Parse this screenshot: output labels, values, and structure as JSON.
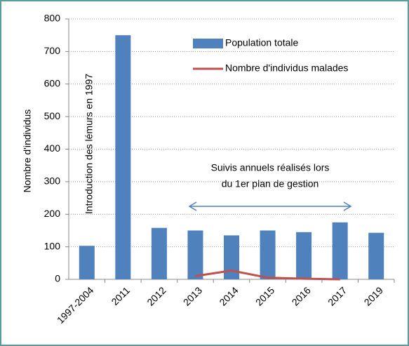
{
  "chart_data": {
    "type": "bar_line",
    "y_axis_label": "Nombre d'individus",
    "categories": [
      "1997-2004",
      "2011",
      "2012",
      "2013",
      "2014",
      "2015",
      "2016",
      "2017",
      "2019"
    ],
    "series": [
      {
        "name": "Population totale",
        "color": "#4f81bd",
        "type": "bar",
        "values": [
          103,
          750,
          158,
          150,
          135,
          150,
          145,
          175,
          143
        ]
      },
      {
        "name": "Nombre d'individus malades",
        "color": "#c0504d",
        "type": "line",
        "values": [
          null,
          null,
          null,
          10,
          27,
          5,
          2,
          0,
          null
        ]
      }
    ],
    "annotations": [
      "Introduction des lémurs en 1997",
      "Suivis annuels réalisés lors",
      "du 1er plan de gestion"
    ],
    "ylim": [
      0,
      800
    ],
    "yticks": [
      0,
      100,
      200,
      300,
      400,
      500,
      600,
      700,
      800
    ],
    "grid": true
  }
}
